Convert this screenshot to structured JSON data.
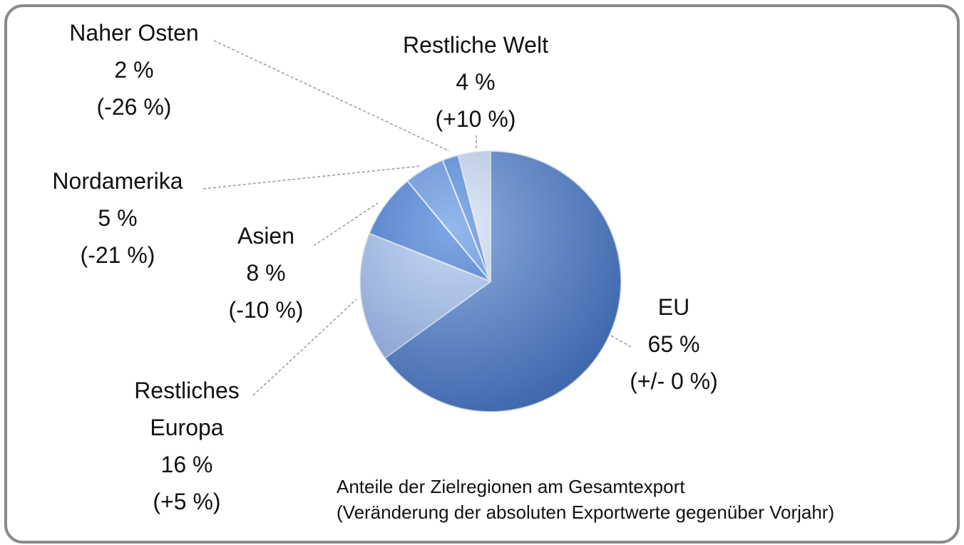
{
  "chart_data": {
    "type": "pie",
    "categories": [
      "EU",
      "Restliches Europa",
      "Asien",
      "Nordamerika",
      "Naher Osten",
      "Restliche Welt"
    ],
    "values": [
      65,
      16,
      8,
      5,
      2,
      4
    ],
    "value_labels": [
      "65 %",
      "16 %",
      "8 %",
      "5 %",
      "2 %",
      "4 %"
    ],
    "change_labels": [
      "(+/- 0 %)",
      "(+5 %)",
      "(-10 %)",
      "(-21 %)",
      "(-26 %)",
      "(+10 %)"
    ],
    "colors": [
      "#4f7fcc",
      "#a9c5f2",
      "#3c77d6",
      "#5a92e2",
      "#4a86dc",
      "#d2e2f8"
    ],
    "note": [
      "Anteile der Zielregionen am Gesamtexport",
      "(Veränderung der absoluten Exportwerte gegenüber Vorjahr)"
    ]
  }
}
